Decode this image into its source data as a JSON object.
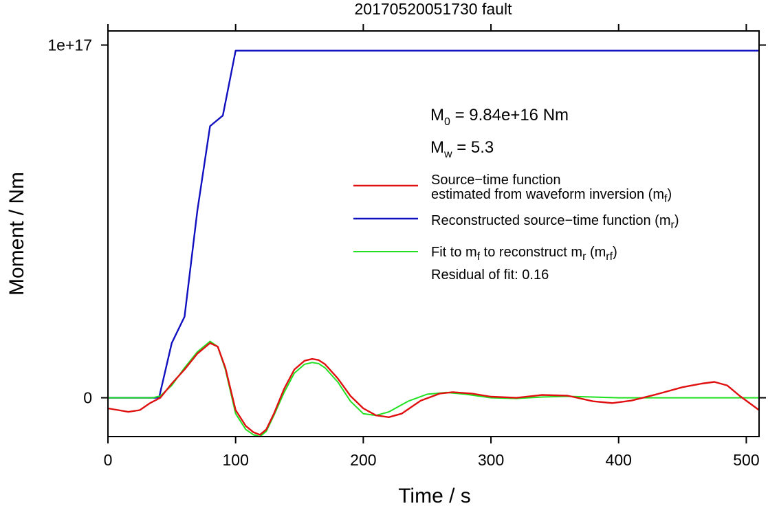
{
  "chart_data": {
    "type": "line",
    "title": "20170520051730 fault",
    "xlabel": "Time / s",
    "ylabel": "Moment / Nm",
    "xlim": [
      0,
      510
    ],
    "ylim": [
      -1.1e+16,
      1.04e+17
    ],
    "x_ticks": [
      {
        "value": 0,
        "label": "0"
      },
      {
        "value": 100,
        "label": "100"
      },
      {
        "value": 200,
        "label": "200"
      },
      {
        "value": 300,
        "label": "300"
      },
      {
        "value": 400,
        "label": "400"
      },
      {
        "value": 500,
        "label": "500"
      }
    ],
    "y_ticks": [
      {
        "value": 0,
        "label": "0"
      },
      {
        "value": 1e+17,
        "label": "1e+17"
      }
    ],
    "annotations": {
      "m0": {
        "base": "M",
        "sub": "0",
        "rest": " = 9.84e+16 Nm"
      },
      "mw": {
        "base": "M",
        "sub": "w",
        "rest": " = 5.3"
      },
      "residual": "Residual of fit: 0.16"
    },
    "legend": [
      {
        "series": "mf",
        "color": "#e01010",
        "line1": "Source−time function",
        "line2_pre": "estimated from waveform inversion (m",
        "line2_sub": "f",
        "line2_post": ")"
      },
      {
        "series": "mr",
        "color": "#1010c0",
        "line1_pre": "Reconstructed source−time function (m",
        "line1_sub": "r",
        "line1_post": ")"
      },
      {
        "series": "mrf",
        "color": "#20e020",
        "p1": "Fit to m",
        "s1": "f",
        "p2": " to reconstruct m",
        "s2": "r",
        "p3": " (m",
        "s3": "rf",
        "p4": ")"
      }
    ],
    "series": [
      {
        "id": "mr",
        "color": "#1010c0",
        "x": [
          0,
          40,
          50,
          60,
          70,
          80,
          90,
          100,
          510
        ],
        "y": [
          0,
          0,
          1.55e+16,
          2.3e+16,
          5.3e+16,
          7.7e+16,
          8e+16,
          9.84e+16,
          9.84e+16
        ]
      },
      {
        "id": "mf",
        "color": "#e01010",
        "x": [
          0,
          8,
          16,
          25,
          33,
          41,
          50,
          60,
          70,
          80,
          86,
          92,
          100,
          108,
          114,
          119,
          124,
          130,
          138,
          146,
          154,
          160,
          165,
          170,
          180,
          190,
          200,
          210,
          220,
          230,
          245,
          260,
          270,
          285,
          300,
          320,
          340,
          360,
          380,
          395,
          410,
          430,
          450,
          465,
          475,
          485,
          495,
          510
        ],
        "y": [
          -3000000000000000.0,
          -3500000000000000.0,
          -4000000000000000.0,
          -3500000000000000.0,
          -1500000000000000.0,
          0.0,
          4000000000000000.0,
          8000000000000000.0,
          1.25e+16,
          1.55e+16,
          1.45e+16,
          8500000000000000.0,
          -3500000000000000.0,
          -8000000000000000.0,
          -9800000000000000.0,
          -1.05e+16,
          -9000000000000000.0,
          -4500000000000000.0,
          2500000000000000.0,
          8000000000000000.0,
          1.05e+16,
          1.1e+16,
          1.07e+16,
          9500000000000000.0,
          5500000000000000.0,
          500000000000000.0,
          -3000000000000000.0,
          -5000000000000000.0,
          -5500000000000000.0,
          -4500000000000000.0,
          -800000000000000.0,
          1200000000000000.0,
          1600000000000000.0,
          1200000000000000.0,
          300000000000000.0,
          0.0,
          800000000000000.0,
          600000000000000.0,
          -1000000000000000.0,
          -1500000000000000.0,
          -800000000000000.0,
          1000000000000000.0,
          3000000000000000.0,
          4000000000000000.0,
          4500000000000000.0,
          3500000000000000.0,
          500000000000000.0,
          -3500000000000000.0
        ]
      },
      {
        "id": "mrf",
        "color": "#20e020",
        "x": [
          0,
          20,
          35,
          41,
          50,
          60,
          70,
          80,
          86,
          92,
          100,
          108,
          114,
          119,
          124,
          130,
          138,
          146,
          154,
          160,
          165,
          170,
          180,
          190,
          200,
          210,
          220,
          235,
          250,
          265,
          280,
          300,
          320,
          340,
          360,
          380,
          400,
          420,
          440,
          460,
          480,
          495,
          510
        ],
        "y": [
          0,
          0,
          0,
          500000000000000.0,
          3500000000000000.0,
          8500000000000000.0,
          1.3e+16,
          1.6e+16,
          1.45e+16,
          8000000000000000.0,
          -4500000000000000.0,
          -9000000000000000.0,
          -1.05e+16,
          -1.1e+16,
          -9500000000000000.0,
          -5000000000000000.0,
          1500000000000000.0,
          7000000000000000.0,
          9500000000000000.0,
          1e+16,
          9700000000000000.0,
          8500000000000000.0,
          4500000000000000.0,
          -1000000000000000.0,
          -4500000000000000.0,
          -5000000000000000.0,
          -4000000000000000.0,
          -1000000000000000.0,
          1000000000000000.0,
          1500000000000000.0,
          1000000000000000.0,
          0.0,
          -200000000000000.0,
          200000000000000.0,
          400000000000000.0,
          200000000000000.0,
          0.0,
          0.0,
          0.0,
          0.0,
          0.0,
          0.0,
          0.0
        ]
      }
    ]
  }
}
